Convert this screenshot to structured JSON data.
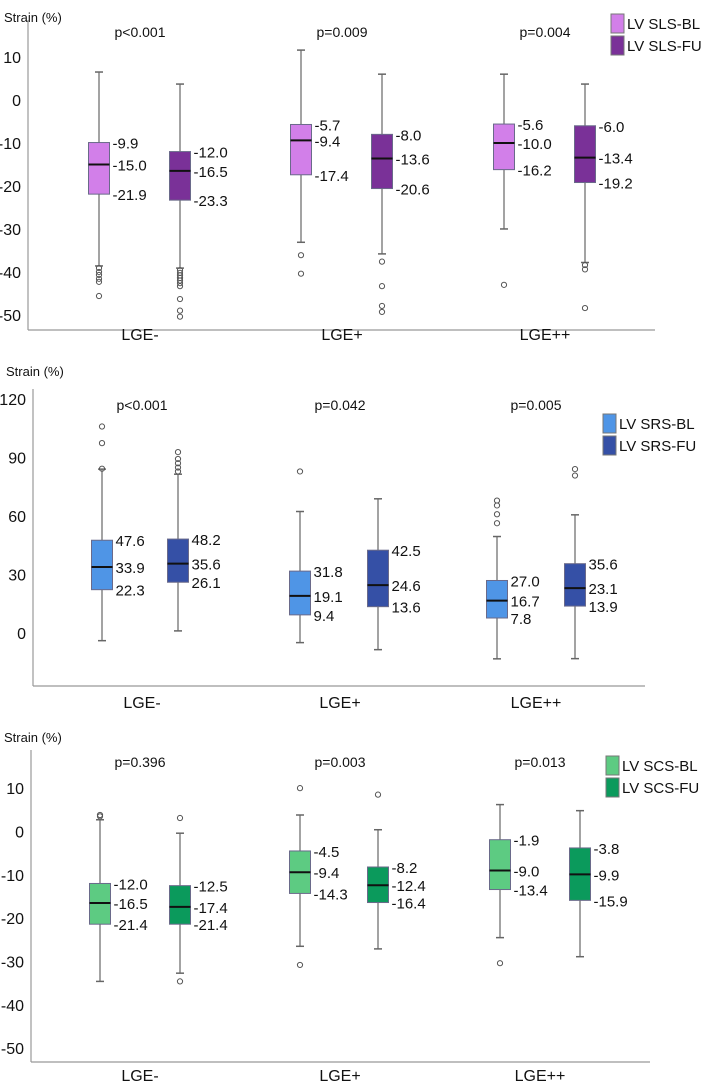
{
  "chart_data": [
    {
      "type": "box",
      "ylabel": "Strain (%)",
      "ylim": [
        -53.5,
        18.6
      ],
      "yticks": [
        10,
        0,
        -10,
        -20,
        -30,
        -40,
        -50
      ],
      "grid": false,
      "legend_position": "top-right",
      "categories": [
        "LGE-",
        "LGE+",
        "LGE++"
      ],
      "pvalues": [
        "p<0.001",
        "p=0.009",
        "p=0.004"
      ],
      "series": [
        {
          "name": "LV SLS-BL",
          "color": "#d27fe9",
          "boxes": [
            {
              "q3": -9.9,
              "median": -15.0,
              "q1": -21.9,
              "whisker_high": 6.5,
              "whisker_low": -38.6,
              "outliers": [
                -39.1,
                -40.0,
                -40.7,
                -41.6,
                -42.3,
                -45.6
              ]
            },
            {
              "q3": -5.7,
              "median": -9.4,
              "q1": -17.4,
              "whisker_high": 11.6,
              "whisker_low": -33.1,
              "outliers": [
                -36.1,
                -40.4
              ]
            },
            {
              "q3": -5.6,
              "median": -10.0,
              "q1": -16.2,
              "whisker_high": 6.0,
              "whisker_low": -30.0,
              "outliers": [
                -43.0
              ]
            }
          ]
        },
        {
          "name": "LV SLS-FU",
          "color": "#7a3198",
          "boxes": [
            {
              "q3": -12.0,
              "median": -16.5,
              "q1": -23.3,
              "whisker_high": 3.7,
              "whisker_low": -39.1,
              "outliers": [
                -39.6,
                -40.2,
                -40.8,
                -41.4,
                -42.0,
                -42.6,
                -43.3,
                -46.3,
                -49.0,
                -50.4
              ]
            },
            {
              "q3": -8.0,
              "median": -13.6,
              "q1": -20.6,
              "whisker_high": 6.0,
              "whisker_low": -35.8,
              "outliers": [
                -37.6,
                -43.3,
                -47.9,
                -49.3
              ]
            },
            {
              "q3": -6.0,
              "median": -13.4,
              "q1": -19.2,
              "whisker_high": 3.7,
              "whisker_low": -37.8,
              "outliers": [
                -38.4,
                -39.4,
                -48.4
              ]
            }
          ]
        }
      ]
    },
    {
      "type": "box",
      "ylabel": "Strain (%)",
      "ylim": [
        -27,
        125
      ],
      "yticks": [
        120,
        90,
        60,
        30,
        0
      ],
      "grid": false,
      "legend_position": "top-right",
      "categories": [
        "LGE-",
        "LGE+",
        "LGE++"
      ],
      "pvalues": [
        "p<0.001",
        "p=0.042",
        "p=0.005"
      ],
      "series": [
        {
          "name": "LV SRS-BL",
          "color": "#4f95e6",
          "boxes": [
            {
              "q3": 47.6,
              "median": 33.9,
              "q1": 22.3,
              "whisker_high": 84.0,
              "whisker_low": -3.8,
              "outliers": [
                84.2,
                97.3,
                105.8
              ]
            },
            {
              "q3": 31.8,
              "median": 19.1,
              "q1": 9.4,
              "whisker_high": 62.3,
              "whisker_low": -4.8,
              "outliers": [
                82.8
              ]
            },
            {
              "q3": 27.0,
              "median": 16.7,
              "q1": 7.8,
              "whisker_high": 49.5,
              "whisker_low": -13.1,
              "outliers": [
                56.3,
                60.9,
                65.4,
                67.9
              ]
            }
          ]
        },
        {
          "name": "LV SRS-FU",
          "color": "#3550a6",
          "boxes": [
            {
              "q3": 48.2,
              "median": 35.6,
              "q1": 26.1,
              "whisker_high": 81.4,
              "whisker_low": 1.2,
              "outliers": [
                82.8,
                84.8,
                87.0,
                89.2,
                92.7
              ]
            },
            {
              "q3": 42.5,
              "median": 24.6,
              "q1": 13.6,
              "whisker_high": 68.8,
              "whisker_low": -8.4,
              "outliers": []
            },
            {
              "q3": 35.6,
              "median": 23.1,
              "q1": 13.9,
              "whisker_high": 60.6,
              "whisker_low": -13.0,
              "outliers": [
                80.7,
                84.0
              ]
            }
          ]
        }
      ]
    },
    {
      "type": "box",
      "ylabel": "Strain (%)",
      "ylim": [
        -53.2,
        18.8
      ],
      "yticks": [
        10,
        0,
        -10,
        -20,
        -30,
        -40,
        -50
      ],
      "grid": false,
      "legend_position": "top-right",
      "categories": [
        "LGE-",
        "LGE+",
        "LGE++"
      ],
      "pvalues": [
        "p=0.396",
        "p=0.003",
        "p=0.013"
      ],
      "series": [
        {
          "name": "LV SCS-BL",
          "color": "#5dcb82",
          "boxes": [
            {
              "q3": -12.0,
              "median": -16.5,
              "q1": -21.4,
              "whisker_high": 2.7,
              "whisker_low": -34.6,
              "outliers": [
                3.5,
                3.8
              ]
            },
            {
              "q3": -4.5,
              "median": -9.4,
              "q1": -14.3,
              "whisker_high": 3.8,
              "whisker_low": -26.5,
              "outliers": [
                10.0,
                -30.8
              ]
            },
            {
              "q3": -1.9,
              "median": -9.0,
              "q1": -13.4,
              "whisker_high": 6.2,
              "whisker_low": -24.5,
              "outliers": [
                -30.4
              ]
            }
          ]
        },
        {
          "name": "LV SCS-FU",
          "color": "#0b9a5c",
          "boxes": [
            {
              "q3": -12.5,
              "median": -17.4,
              "q1": -21.4,
              "whisker_high": -0.4,
              "whisker_low": -32.7,
              "outliers": [
                3.1,
                -34.6
              ]
            },
            {
              "q3": -8.2,
              "median": -12.4,
              "q1": -16.4,
              "whisker_high": 0.4,
              "whisker_low": -27.1,
              "outliers": [
                8.5
              ]
            },
            {
              "q3": -3.8,
              "median": -9.9,
              "q1": -15.9,
              "whisker_high": 4.8,
              "whisker_low": -28.9,
              "outliers": []
            }
          ]
        }
      ]
    }
  ]
}
